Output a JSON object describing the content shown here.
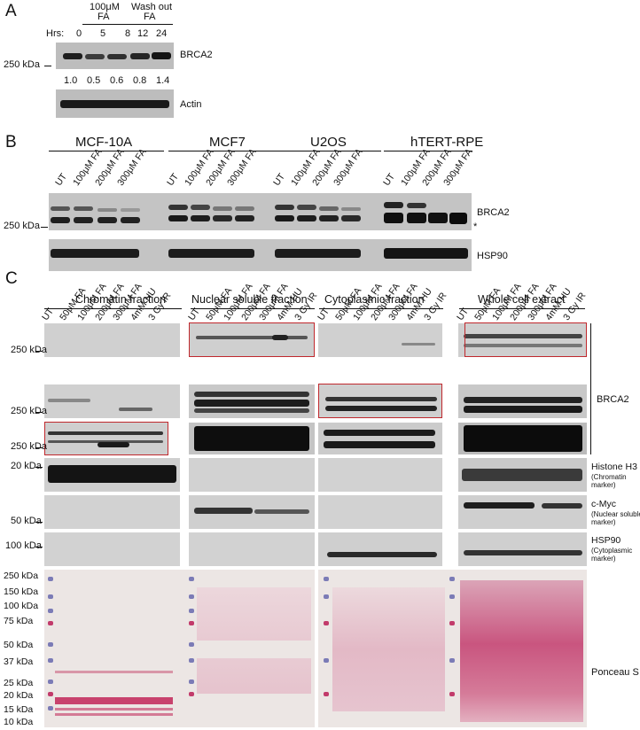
{
  "panelA": {
    "letter": "A",
    "group1": "100μM\nFA",
    "group1_l1": "100μM",
    "group1_l2": "FA",
    "group2_l1": "Wash out",
    "group2_l2": "FA",
    "hrs_label": "Hrs:",
    "hours": [
      "0",
      "5",
      "8",
      "12",
      "24"
    ],
    "quant": [
      "1.0",
      "0.5",
      "0.6",
      "0.8",
      "1.4"
    ],
    "marker": "250 kDa",
    "blot1_label": "BRCA2",
    "blot2_label": "Actin"
  },
  "panelB": {
    "letter": "B",
    "cell_lines": [
      "MCF-10A",
      "MCF7",
      "U2OS",
      "hTERT-RPE"
    ],
    "lanes": [
      "UT",
      "100μM FA",
      "200μM FA",
      "300μM FA"
    ],
    "marker": "250 kDa",
    "blot1_label": "BRCA2",
    "asterisk": "*",
    "blot2_label": "HSP90"
  },
  "panelC": {
    "letter": "C",
    "fractions": [
      "Chromatin fraction",
      "Nuclear soluble fraction",
      "Cytoplasmic fraction",
      "Whole cell extract"
    ],
    "lanes": [
      "UT",
      "50μM FA",
      "100μM FA",
      "200μM FA",
      "300μM FA",
      "4mM HU",
      "3 Gy IR"
    ],
    "markers": {
      "brca_1": "250 kDa",
      "brca_2": "250 kDa",
      "brca_3": "250 kDa",
      "h3": "20 kDa",
      "myc": "50 kDa",
      "hsp": "100 kDa"
    },
    "brca2_label": "BRCA2",
    "h3_label": "Histone H3",
    "h3_sub_l1": "(Chromatin",
    "h3_sub_l2": "marker)",
    "myc_label": "c-Myc",
    "myc_sub_l1": "(Nuclear soluble",
    "myc_sub_l2": "marker)",
    "hsp_label": "HSP90",
    "hsp_sub_l1": "(Cytoplasmic",
    "hsp_sub_l2": "marker)",
    "ponceau_label": "Ponceau S",
    "ponceau_markers": [
      "250 kDa",
      "150 kDa",
      "100 kDa",
      "75 kDa",
      "50 kDa",
      "37 kDa",
      "25 kDa",
      "20 kDa",
      "15 kDa",
      "10 kDa"
    ]
  },
  "colors": {
    "red_box": "#c0282d",
    "ponceau_bg": "#efe6e6",
    "ponceau_band": "#c8507a",
    "blot_bg": "#c9c9c9",
    "band_dark": "#1a1a1a"
  }
}
